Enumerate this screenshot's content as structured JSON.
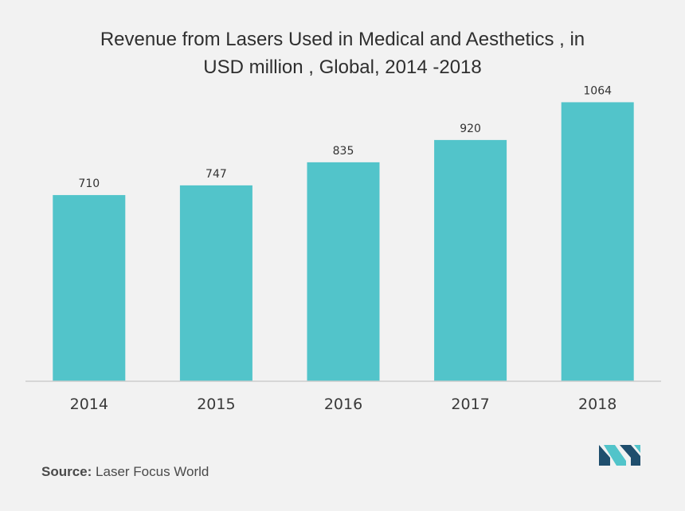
{
  "chart_data": {
    "type": "bar",
    "title_line1": "Revenue from Lasers Used in Medical and Aesthetics , in",
    "title_line2": "USD million , Global, 2014 -2018",
    "categories": [
      "2014",
      "2015",
      "2016",
      "2017",
      "2018"
    ],
    "values": [
      710,
      747,
      835,
      920,
      1064
    ],
    "ylim": [
      0,
      1120
    ],
    "grid": false,
    "legend": "none",
    "bar_color": "#52c4ca",
    "axis_color": "#cccccc"
  },
  "source": {
    "label": "Source:",
    "text": "Laser Focus World"
  },
  "logo": {
    "icon": "mordor-intelligence-logo",
    "colors": [
      "#1f4e6d",
      "#52c4ca"
    ]
  }
}
